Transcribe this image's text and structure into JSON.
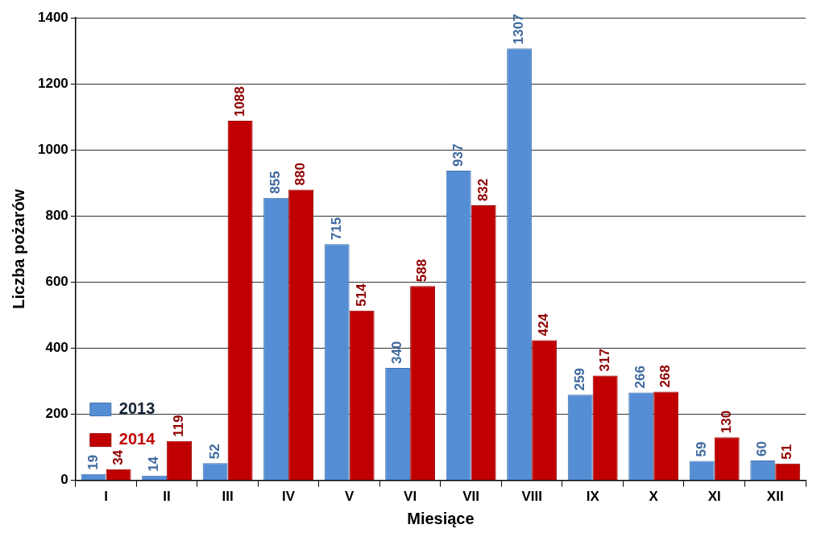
{
  "chart_data": {
    "type": "bar",
    "categories": [
      "I",
      "II",
      "III",
      "IV",
      "V",
      "VI",
      "VII",
      "VIII",
      "IX",
      "X",
      "XI",
      "XII"
    ],
    "series": [
      {
        "name": "2013",
        "color": "#558ed5",
        "values": [
          19,
          14,
          52,
          855,
          715,
          340,
          937,
          1307,
          259,
          266,
          59,
          60
        ]
      },
      {
        "name": "2014",
        "color": "#c00000",
        "values": [
          34,
          119,
          1088,
          880,
          514,
          588,
          832,
          424,
          317,
          268,
          130,
          51
        ]
      }
    ],
    "x_label": "Miesiące",
    "y_label": "Liczba pożarów",
    "ylim": [
      0,
      1400
    ],
    "yticks": [
      0,
      200,
      400,
      600,
      800,
      1000,
      1200,
      1400
    ],
    "grid": true,
    "legend": "upper right",
    "data_labels": true
  }
}
